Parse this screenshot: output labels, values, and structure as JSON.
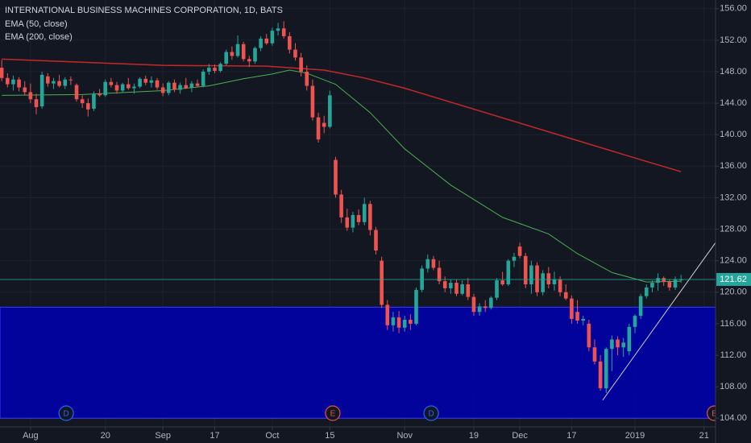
{
  "chart_data": {
    "type": "candlestick",
    "title": "INTERNATIONAL BUSINESS MACHINES CORPORATION, 1D, BATS",
    "candles": {
      "up_color": "#26a69a",
      "down_color": "#ef5350",
      "open": [
        148.5,
        147.2,
        146.4,
        147.0,
        146.0,
        145.4,
        144.5,
        143.6,
        147.4,
        146.5,
        146.8,
        146.2,
        147.0,
        146.3,
        144.5,
        144.0,
        143.3,
        145.2,
        145.0,
        146.7,
        146.3,
        145.6,
        146.4,
        145.9,
        146.1,
        147.1,
        146.6,
        146.9,
        146.0,
        145.3,
        146.6,
        145.7,
        146.3,
        146.0,
        146.5,
        146.2,
        148.0,
        148.5,
        148.1,
        149.0,
        150.5,
        150.0,
        151.5,
        149.6,
        149.3,
        151.0,
        152.2,
        151.6,
        153.2,
        153.5,
        152.5,
        150.8,
        149.8,
        148.0,
        146.2,
        142.2,
        141.5,
        141.0,
        136.8,
        132.4,
        129.5,
        128.2,
        129.8,
        128.9,
        131.2,
        127.9,
        124.0,
        118.4,
        115.8,
        116.8,
        115.5,
        116.5,
        116.0,
        120.3,
        123.0,
        124.2,
        123.1,
        121.4,
        120.5,
        121.2,
        119.8,
        121.0,
        119.4,
        117.5,
        118.2,
        118.0,
        119.3,
        121.5,
        121.0,
        124.0,
        125.8,
        124.6,
        121.0,
        123.4,
        120.0,
        122.4,
        121.0,
        121.6,
        120.0,
        119.2,
        117.5,
        116.4,
        116.0,
        113.0,
        111.2,
        107.8,
        112.8,
        114.0,
        113.0,
        112.5,
        115.6,
        117.0,
        119.5,
        120.6,
        121.2,
        121.8,
        121.3,
        120.6,
        121.6
      ],
      "high": [
        149.5,
        147.8,
        147.5,
        147.3,
        146.8,
        146.5,
        145.2,
        148.0,
        147.8,
        147.2,
        147.6,
        147.3,
        147.4,
        146.5,
        145.0,
        144.6,
        145.5,
        145.8,
        147.0,
        147.2,
        146.7,
        146.6,
        147.2,
        146.5,
        147.3,
        147.5,
        147.4,
        147.2,
        146.5,
        146.8,
        147.0,
        146.6,
        147.2,
        146.8,
        147.0,
        148.3,
        149.0,
        148.9,
        149.2,
        150.8,
        151.2,
        152.6,
        151.8,
        150.0,
        151.2,
        152.5,
        152.8,
        153.6,
        154.2,
        154.4,
        153.0,
        151.6,
        150.4,
        148.8,
        147.0,
        142.8,
        142.4,
        145.6,
        137.2,
        133.0,
        130.6,
        130.2,
        130.5,
        132.0,
        131.6,
        128.3,
        124.5,
        119.0,
        117.5,
        117.6,
        117.0,
        117.2,
        120.6,
        123.4,
        124.8,
        124.6,
        124.0,
        122.0,
        121.6,
        121.6,
        121.5,
        121.8,
        119.8,
        118.6,
        119.0,
        119.5,
        121.8,
        122.6,
        124.2,
        125.0,
        126.3,
        125.0,
        124.0,
        123.8,
        122.8,
        123.2,
        122.6,
        122.0,
        121.0,
        119.6,
        119.0,
        117.0,
        116.5,
        114.0,
        112.0,
        113.0,
        114.5,
        114.4,
        114.2,
        116.0,
        117.2,
        119.8,
        121.0,
        121.5,
        122.4,
        122.0,
        121.6,
        122.0,
        122.2
      ],
      "low": [
        146.8,
        146.0,
        145.6,
        145.5,
        145.0,
        144.0,
        142.6,
        143.3,
        146.1,
        145.8,
        146.0,
        145.8,
        146.3,
        144.2,
        143.4,
        142.3,
        143.0,
        144.8,
        144.8,
        146.0,
        145.2,
        145.4,
        145.7,
        145.2,
        145.9,
        146.3,
        146.0,
        145.7,
        144.9,
        145.0,
        145.4,
        145.2,
        145.8,
        145.4,
        146.0,
        146.0,
        147.6,
        147.8,
        147.9,
        148.8,
        149.5,
        149.8,
        149.3,
        148.6,
        149.0,
        150.6,
        151.4,
        151.3,
        152.6,
        152.2,
        150.3,
        149.4,
        147.4,
        145.6,
        141.8,
        139.0,
        140.2,
        140.8,
        132.0,
        128.8,
        127.8,
        127.6,
        128.5,
        128.5,
        127.2,
        124.8,
        118.0,
        115.2,
        115.0,
        114.8,
        115.0,
        115.2,
        115.8,
        120.0,
        122.5,
        122.8,
        121.0,
        120.0,
        119.8,
        119.5,
        119.6,
        119.0,
        117.0,
        117.0,
        117.5,
        117.8,
        119.0,
        120.8,
        120.8,
        123.2,
        124.3,
        120.5,
        119.8,
        119.5,
        119.6,
        120.5,
        120.2,
        119.5,
        119.0,
        116.0,
        116.0,
        115.8,
        112.5,
        110.8,
        107.5,
        107.2,
        110.0,
        112.0,
        111.8,
        112.0,
        114.8,
        116.6,
        119.2,
        120.0,
        120.2,
        120.8,
        120.2,
        120.3,
        121.2
      ],
      "close": [
        147.2,
        146.4,
        147.0,
        146.0,
        145.4,
        144.5,
        143.5,
        147.6,
        146.5,
        146.8,
        146.2,
        147.0,
        146.9,
        144.5,
        144.0,
        143.2,
        145.2,
        145.0,
        146.7,
        146.3,
        145.6,
        146.4,
        145.9,
        146.1,
        147.1,
        146.6,
        146.9,
        146.0,
        145.3,
        146.6,
        145.7,
        146.3,
        145.9,
        146.5,
        146.2,
        148.0,
        148.5,
        148.1,
        149.0,
        150.5,
        150.0,
        151.5,
        149.6,
        149.3,
        151.0,
        152.2,
        151.6,
        153.2,
        153.5,
        152.5,
        150.8,
        149.8,
        148.0,
        146.2,
        142.2,
        139.4,
        141.0,
        145.0,
        132.4,
        129.5,
        128.2,
        129.8,
        128.9,
        131.2,
        127.9,
        125.3,
        118.4,
        115.8,
        116.8,
        115.5,
        116.5,
        116.0,
        120.3,
        123.0,
        124.2,
        123.1,
        121.4,
        120.5,
        121.2,
        119.8,
        121.0,
        119.4,
        117.5,
        118.2,
        118.0,
        119.3,
        121.5,
        121.0,
        124.0,
        124.5,
        124.6,
        121.0,
        123.4,
        120.0,
        122.4,
        121.0,
        121.6,
        120.0,
        119.2,
        116.6,
        116.4,
        116.6,
        113.0,
        111.2,
        107.8,
        112.8,
        114.0,
        113.0,
        113.6,
        115.6,
        117.0,
        119.5,
        120.6,
        121.2,
        121.8,
        121.3,
        120.6,
        121.6,
        121.62
      ]
    },
    "series": [
      {
        "name": "EMA (50, close)",
        "color": "#4caf50",
        "x": [
          0,
          14,
          28,
          36,
          42,
          47,
          50,
          53,
          58,
          64,
          70,
          78,
          87,
          95,
          100,
          106,
          112,
          118
        ],
        "values": [
          145.0,
          145.1,
          145.6,
          146.2,
          147.1,
          147.7,
          148.2,
          147.8,
          146.4,
          142.8,
          138.2,
          133.6,
          129.5,
          127.4,
          124.9,
          122.5,
          121.3,
          121.4
        ]
      },
      {
        "name": "EMA (200, close)",
        "color": "#c62828",
        "x": [
          0,
          28,
          46,
          56,
          63,
          70,
          84,
          98,
          112,
          118
        ],
        "values": [
          149.6,
          148.8,
          148.7,
          148.2,
          147.2,
          145.9,
          142.8,
          139.7,
          136.6,
          135.3
        ]
      }
    ],
    "xlim": [
      -0.3,
      124
    ],
    "xticks": [
      {
        "value": 5,
        "label": "Aug"
      },
      {
        "value": 18,
        "label": "20"
      },
      {
        "value": 28,
        "label": "Sep"
      },
      {
        "value": 37,
        "label": "17"
      },
      {
        "value": 47,
        "label": "Oct"
      },
      {
        "value": 57,
        "label": "15"
      },
      {
        "value": 70,
        "label": "Nov"
      },
      {
        "value": 82,
        "label": "19"
      },
      {
        "value": 90,
        "label": "Dec"
      },
      {
        "value": 99,
        "label": "17"
      },
      {
        "value": 110,
        "label": "2019"
      },
      {
        "value": 122,
        "label": "21"
      }
    ],
    "ylim": [
      102.9,
      157.1
    ],
    "yticks": [
      {
        "value": 104,
        "label": "104.00"
      },
      {
        "value": 108,
        "label": "108.00"
      },
      {
        "value": 112,
        "label": "112.00"
      },
      {
        "value": 116,
        "label": "116.00"
      },
      {
        "value": 120,
        "label": "120.00"
      },
      {
        "value": 124,
        "label": "124.00"
      },
      {
        "value": 128,
        "label": "128.00"
      },
      {
        "value": 132,
        "label": "132.00"
      },
      {
        "value": 136,
        "label": "136.00"
      },
      {
        "value": 140,
        "label": "140.00"
      },
      {
        "value": 144,
        "label": "144.00"
      },
      {
        "value": 148,
        "label": "148.00"
      },
      {
        "value": 152,
        "label": "152.00"
      },
      {
        "value": 156,
        "label": "156.00"
      }
    ],
    "grid": true,
    "band": {
      "from": 104,
      "to": 118.1,
      "color": "#0000b0"
    },
    "trendline": {
      "x": [
        104.4,
        124.3
      ],
      "y": [
        106.3,
        126.6
      ],
      "color": "#d0d0d0"
    },
    "last_price": 121.62,
    "last_price_color": "#26a69a",
    "events": [
      {
        "x": 11.2,
        "label": "D",
        "color": "#2962ff"
      },
      {
        "x": 57.5,
        "label": "E",
        "color": "#e5544a"
      },
      {
        "x": 74.6,
        "label": "D",
        "color": "#2962ff"
      },
      {
        "x": 123.8,
        "label": "E",
        "color": "#e5544a"
      }
    ]
  }
}
